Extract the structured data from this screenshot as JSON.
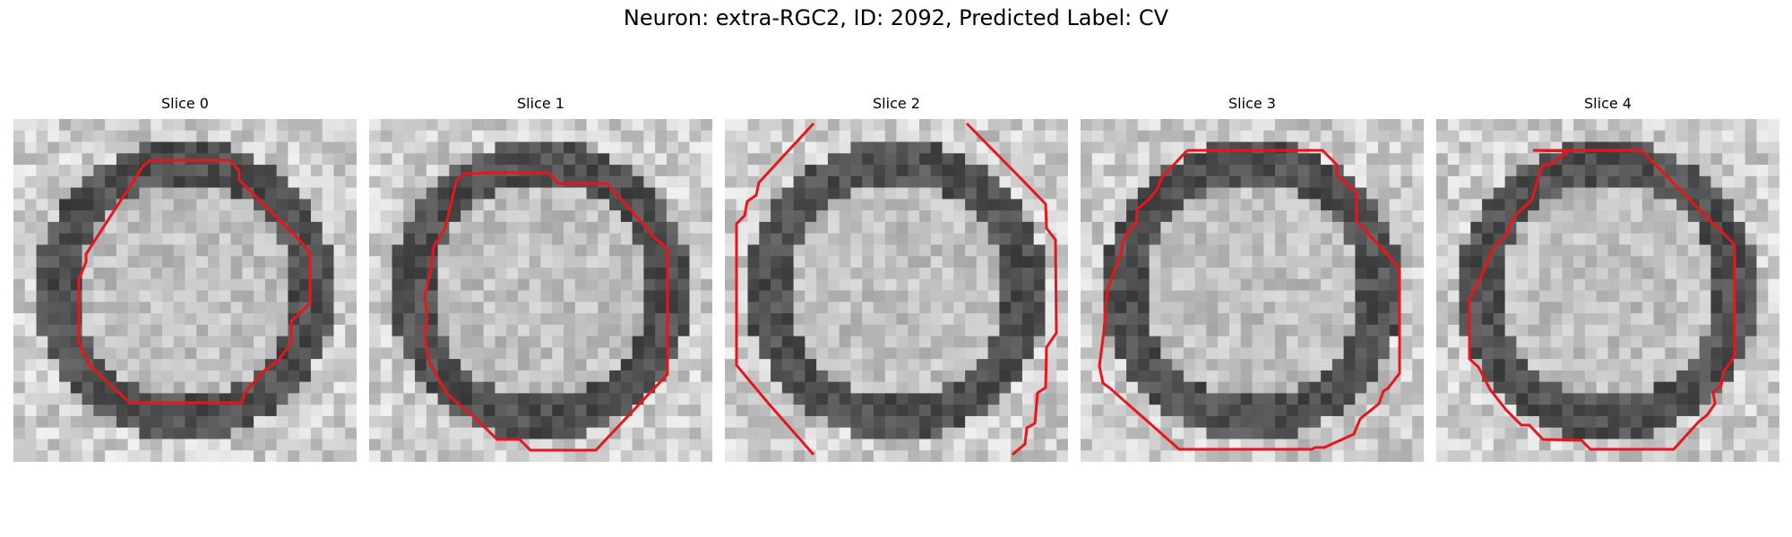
{
  "figure": {
    "title": "Neuron: extra-RGC2, ID: 2092, Predicted Label: CV"
  },
  "contour_color": "#e8161a",
  "panels": [
    {
      "title": "Slice 0"
    },
    {
      "title": "Slice 1"
    },
    {
      "title": "Slice 2"
    },
    {
      "title": "Slice 3"
    },
    {
      "title": "Slice 4"
    }
  ]
}
